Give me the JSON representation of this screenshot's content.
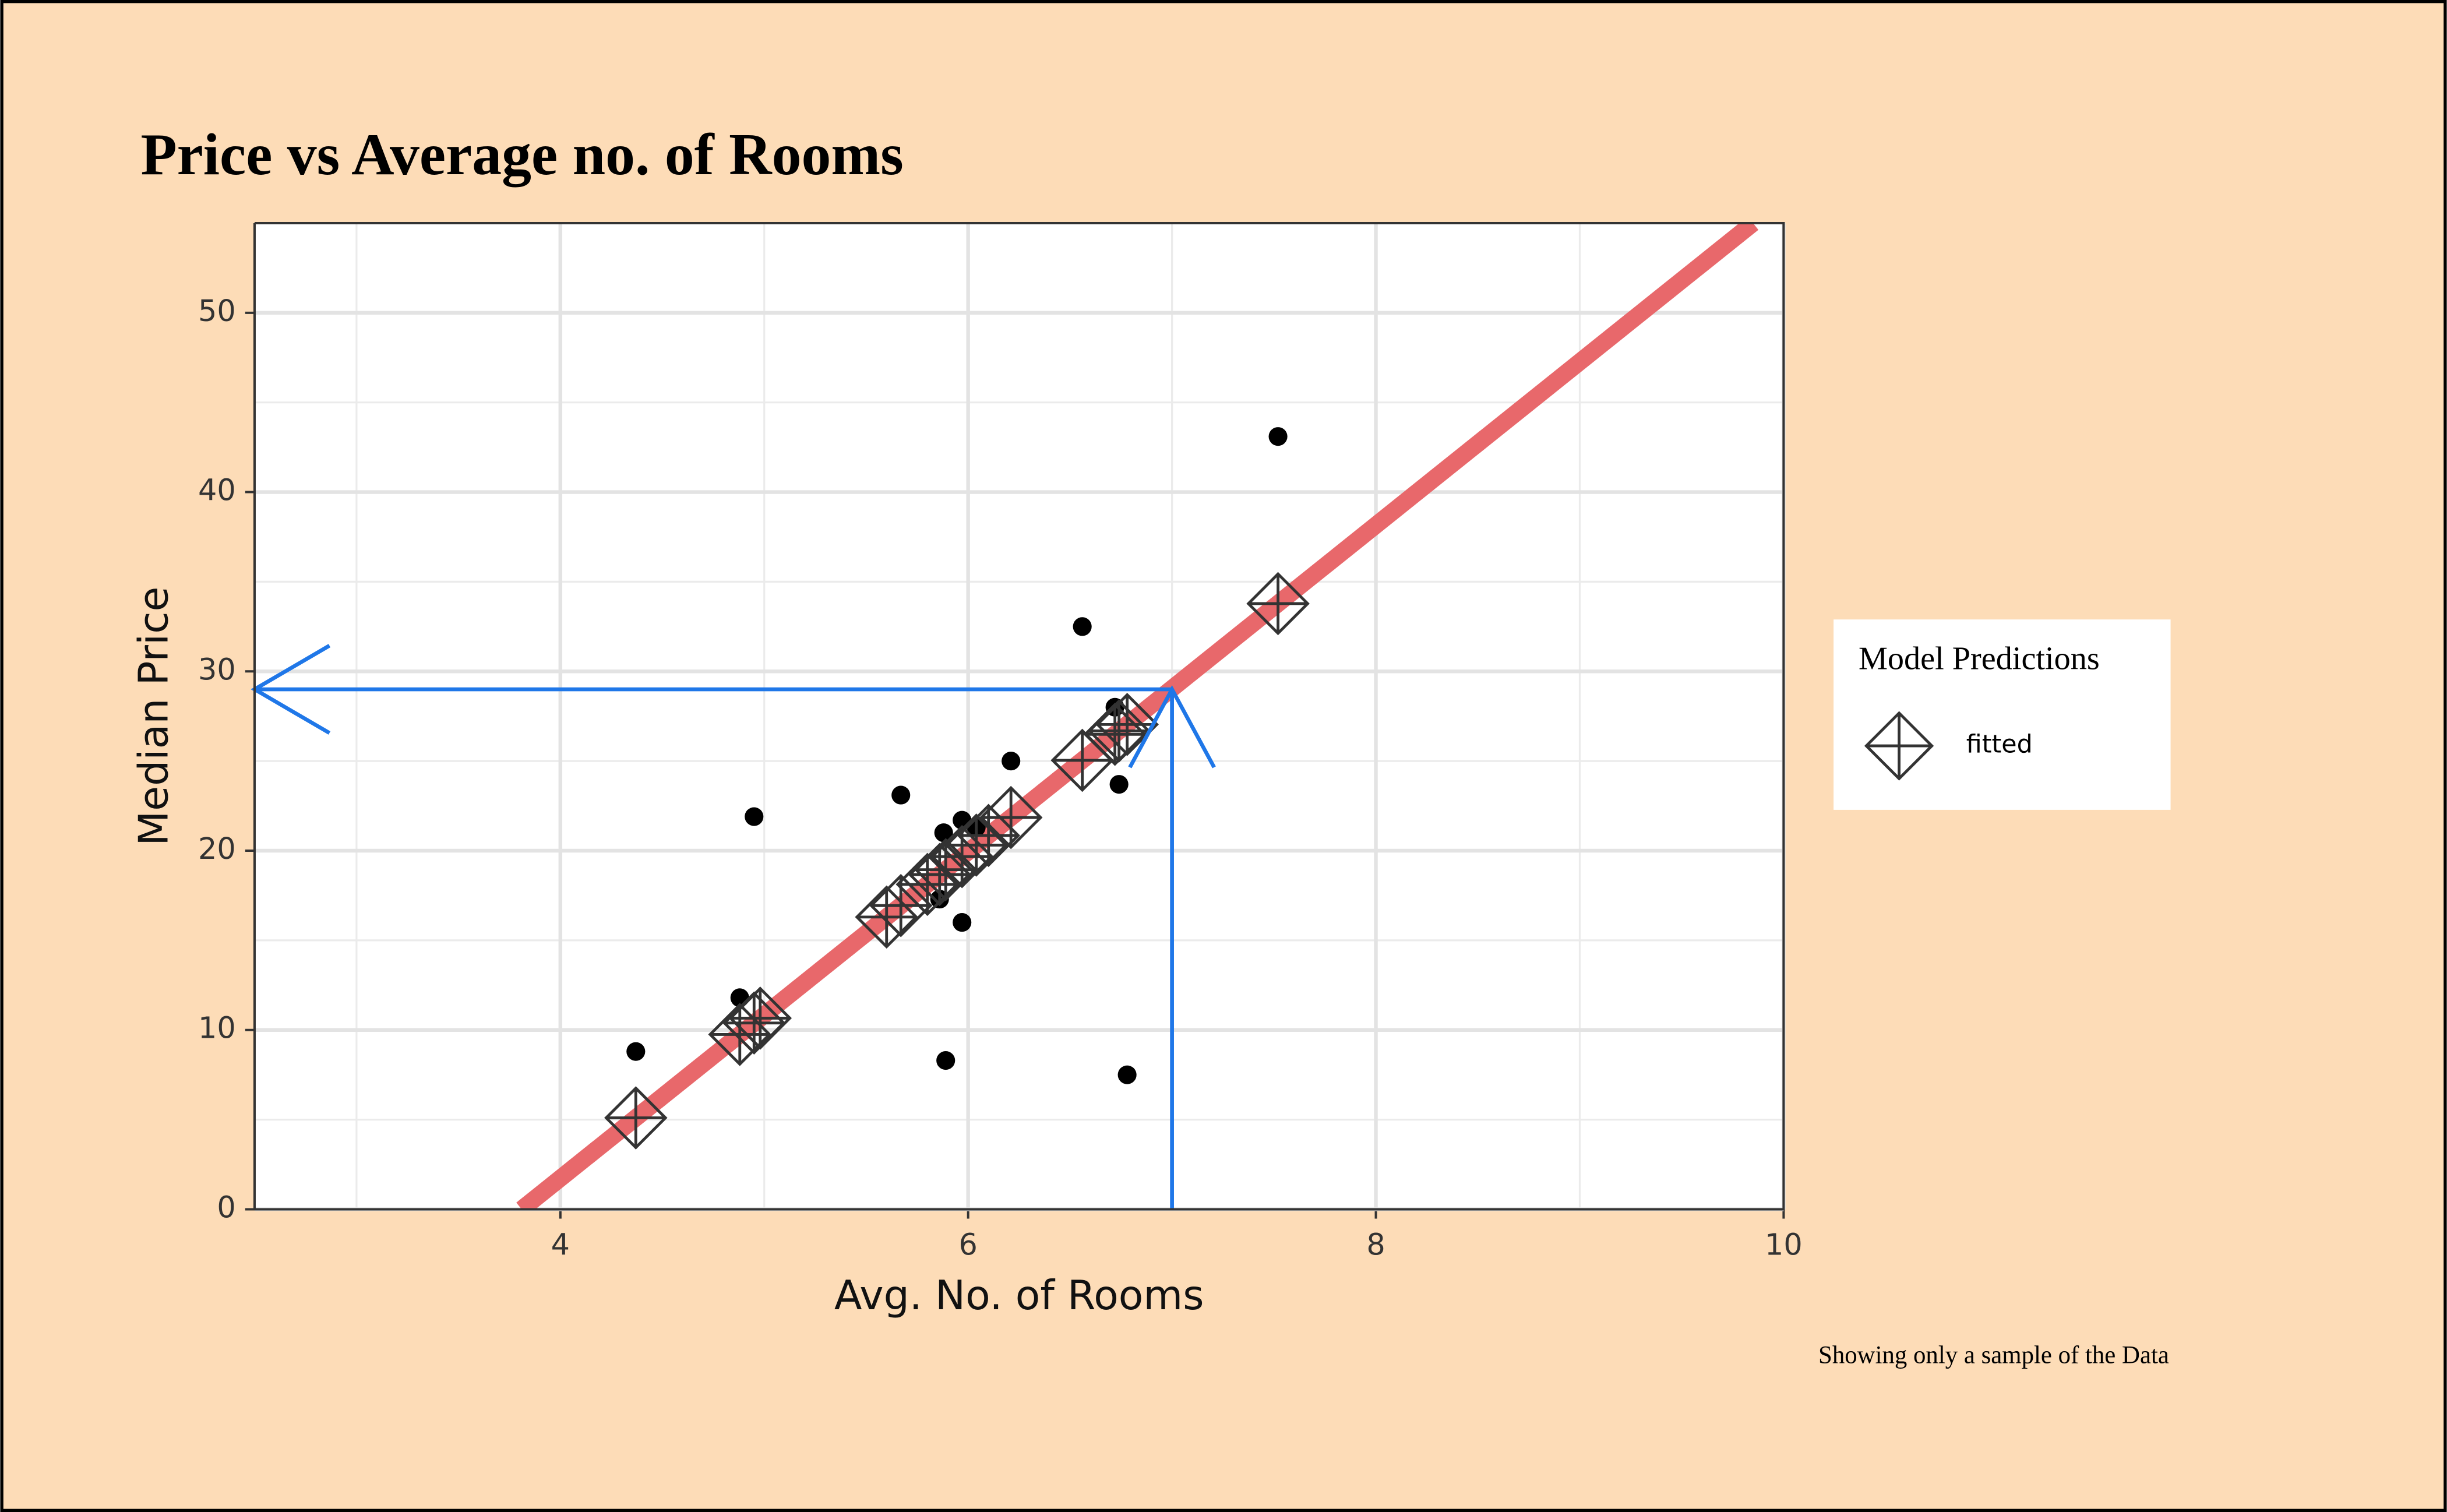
{
  "chart_data": {
    "type": "scatter",
    "title": "Price vs Average no. of Rooms",
    "x_label": "Avg. No. of Rooms",
    "y_label": "Median Price",
    "caption": "Showing only a sample of the Data",
    "legend_title": "Model Predictions",
    "legend_position": "right",
    "xlim": [
      2.5,
      10
    ],
    "ylim": [
      0,
      55
    ],
    "xticks": [
      4,
      6,
      8,
      10
    ],
    "yticks": [
      0,
      10,
      20,
      30,
      40,
      50
    ],
    "xminor": [
      3,
      5,
      7,
      9
    ],
    "yminor": [
      5,
      15,
      25,
      35,
      45
    ],
    "grid": true,
    "series": [
      {
        "kind": "points",
        "color": "#000000",
        "x": [
          4.37,
          4.88,
          4.95,
          5.67,
          5.88,
          5.97,
          5.97,
          5.89,
          5.86,
          6.04,
          6.21,
          6.56,
          6.72,
          6.74,
          6.78,
          7.52
        ],
        "values": [
          8.8,
          11.8,
          21.9,
          23.1,
          21.0,
          21.7,
          16.0,
          8.3,
          17.3,
          21.3,
          25.0,
          32.5,
          28.0,
          23.7,
          7.5,
          43.1
        ]
      },
      {
        "kind": "line",
        "color": "#e8686b",
        "x": [
          3.81,
          9.85
        ],
        "values": [
          0,
          55
        ]
      },
      {
        "kind": "diamond",
        "name": "fitted",
        "color": "#333333",
        "x": [
          4.37,
          4.88,
          4.95,
          4.98,
          5.6,
          5.67,
          5.8,
          5.86,
          5.89,
          5.97,
          6.04,
          6.1,
          6.21,
          6.56,
          6.72,
          6.74,
          6.78,
          7.52
        ],
        "values": [
          5.1,
          9.75,
          10.39,
          10.66,
          16.3,
          16.94,
          18.12,
          18.67,
          18.94,
          19.67,
          20.31,
          20.85,
          21.85,
          25.04,
          26.49,
          26.68,
          27.04,
          33.78
        ]
      }
    ],
    "prediction": {
      "x": 7,
      "y": 29,
      "color": "#1f77e8"
    }
  }
}
